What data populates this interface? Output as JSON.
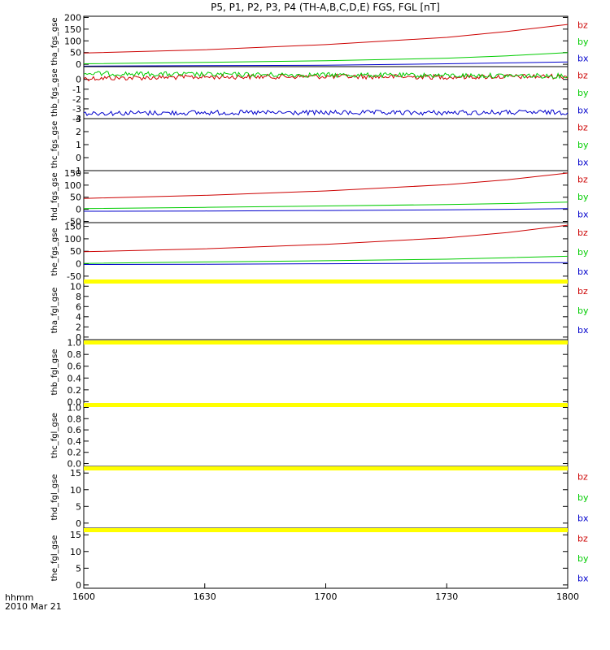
{
  "title": "P5,  P1,  P2,  P3,  P4 (TH-A,B,C,D,E) FGS, FGL [nT]",
  "footer": {
    "time_format_label": "hhmm",
    "date_label": "2010 Mar 21"
  },
  "colors": {
    "bz": "#cc0000",
    "by": "#00cc00",
    "bx": "#0000cc",
    "no_data_bar": "#ffff00",
    "axis": "#000000"
  },
  "chart_data": {
    "type": "line",
    "x_ticks": [
      "1600",
      "1630",
      "1700",
      "1730",
      "1800"
    ],
    "x_range": [
      "16:00",
      "18:00"
    ],
    "panels": [
      {
        "ylabel": "tha_fgs_gse",
        "ylim": [
          -10,
          205
        ],
        "yticks": [
          "200",
          "150",
          "100",
          "50",
          "0"
        ],
        "legend": [
          "bz",
          "by",
          "bx"
        ],
        "series": [
          {
            "name": "bz",
            "x": [
              "16:00",
              "16:30",
              "17:00",
              "17:30",
              "17:45",
              "18:00"
            ],
            "values": [
              48,
              62,
              84,
              115,
              140,
              170
            ]
          },
          {
            "name": "by",
            "x": [
              "16:00",
              "16:30",
              "17:00",
              "17:30",
              "17:45",
              "18:00"
            ],
            "values": [
              2,
              8,
              15,
              26,
              36,
              50
            ]
          },
          {
            "name": "bx",
            "x": [
              "16:00",
              "16:30",
              "17:00",
              "17:30",
              "17:45",
              "18:00"
            ],
            "values": [
              -8,
              -6,
              -4,
              2,
              6,
              10
            ]
          }
        ]
      },
      {
        "ylabel": "thb_fgs_gse",
        "ylim": [
          -4,
          1.3
        ],
        "yticks": [
          "0",
          "-1",
          "-2",
          "-3",
          "-4"
        ],
        "legend": [
          "bz",
          "by",
          "bx"
        ],
        "series": [
          {
            "name": "bz",
            "x": [
              "16:00",
              "16:30",
              "17:00",
              "17:30",
              "18:00"
            ],
            "values": [
              0.1,
              0.25,
              0.3,
              0.25,
              0.3
            ],
            "noisy": true
          },
          {
            "name": "by",
            "x": [
              "16:00",
              "16:30",
              "17:00",
              "17:30",
              "18:00"
            ],
            "values": [
              0.6,
              0.5,
              0.45,
              0.4,
              0.35
            ],
            "noisy": true
          },
          {
            "name": "bx",
            "x": [
              "16:00",
              "16:30",
              "17:00",
              "17:30",
              "18:00"
            ],
            "values": [
              -3.45,
              -3.4,
              -3.4,
              -3.4,
              -3.35
            ],
            "noisy": true
          }
        ]
      },
      {
        "ylabel": "thc_fgs_gse",
        "ylim": [
          -1,
          3
        ],
        "yticks": [
          "3",
          "2",
          "1",
          "0",
          "-1"
        ],
        "legend": [
          "bz",
          "by",
          "bx"
        ],
        "series": []
      },
      {
        "ylabel": "thd_fgs_gse",
        "ylim": [
          -55,
          160
        ],
        "yticks": [
          "150",
          "100",
          "50",
          "0",
          "-50"
        ],
        "legend": [
          "bz",
          "by",
          "bx"
        ],
        "series": [
          {
            "name": "bz",
            "x": [
              "16:00",
              "16:30",
              "17:00",
              "17:30",
              "17:45",
              "18:00"
            ],
            "values": [
              45,
              58,
              76,
              102,
              122,
              150
            ]
          },
          {
            "name": "by",
            "x": [
              "16:00",
              "16:30",
              "17:00",
              "17:30",
              "17:45",
              "18:00"
            ],
            "values": [
              3,
              8,
              14,
              20,
              24,
              30
            ]
          },
          {
            "name": "bx",
            "x": [
              "16:00",
              "16:30",
              "17:00",
              "17:30",
              "17:45",
              "18:00"
            ],
            "values": [
              -8,
              -7,
              -5,
              -2,
              0,
              3
            ]
          }
        ]
      },
      {
        "ylabel": "the_fgs_gse",
        "ylim": [
          -70,
          165
        ],
        "yticks": [
          "150",
          "100",
          "50",
          "0",
          "-50"
        ],
        "legend": [
          "bz",
          "by",
          "bx"
        ],
        "series": [
          {
            "name": "bz",
            "x": [
              "16:00",
              "16:30",
              "17:00",
              "17:30",
              "17:45",
              "18:00"
            ],
            "values": [
              48,
              60,
              78,
              104,
              125,
              155
            ]
          },
          {
            "name": "by",
            "x": [
              "16:00",
              "16:30",
              "17:00",
              "17:30",
              "17:45",
              "18:00"
            ],
            "values": [
              1,
              7,
              12,
              18,
              24,
              30
            ]
          },
          {
            "name": "bx",
            "x": [
              "16:00",
              "16:30",
              "17:00",
              "17:30",
              "17:45",
              "18:00"
            ],
            "values": [
              -3,
              -2,
              0,
              2,
              3,
              4
            ]
          }
        ]
      },
      {
        "ylabel": "tha_fgl_gse",
        "ylim": [
          -0.5,
          11
        ],
        "yticks": [
          "10",
          "8",
          "6",
          "4",
          "2",
          "0"
        ],
        "legend": [
          "bz",
          "by",
          "bx"
        ],
        "no_data_bar": true,
        "series": []
      },
      {
        "ylabel": "thb_fgl_gse",
        "ylim": [
          -0.05,
          1.05
        ],
        "yticks": [
          "1.0",
          "0.8",
          "0.6",
          "0.4",
          "0.2",
          "0.0"
        ],
        "legend": [],
        "no_data_bar": true,
        "series": []
      },
      {
        "ylabel": "thc_fgl_gse",
        "ylim": [
          -0.05,
          1.05
        ],
        "yticks": [
          "1.0",
          "0.8",
          "0.6",
          "0.4",
          "0.2",
          "0.0"
        ],
        "legend": [],
        "no_data_bar": true,
        "series": []
      },
      {
        "ylabel": "thd_fgl_gse",
        "ylim": [
          -1.5,
          17
        ],
        "yticks": [
          "15",
          "10",
          "5",
          "0"
        ],
        "legend": [
          "bz",
          "by",
          "bx"
        ],
        "no_data_bar": true,
        "series": []
      },
      {
        "ylabel": "the_fgl_gse",
        "ylim": [
          -1,
          17
        ],
        "yticks": [
          "15",
          "10",
          "5",
          "0"
        ],
        "legend": [
          "bz",
          "by",
          "bx"
        ],
        "no_data_bar": true,
        "series": []
      }
    ]
  }
}
